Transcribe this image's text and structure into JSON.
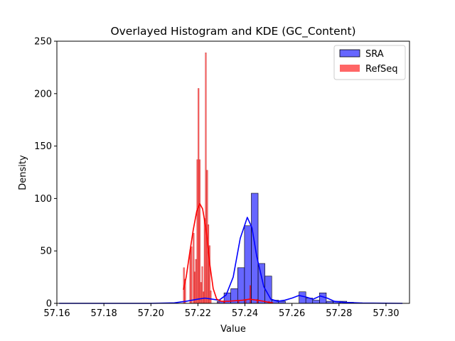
{
  "chart_data": {
    "type": "histogram",
    "title": "Overlayed Histogram and KDE (GC_Content)",
    "xlabel": "Value",
    "ylabel": "Density",
    "xlim": [
      57.16,
      57.31
    ],
    "ylim": [
      0,
      250
    ],
    "xticks": [
      "57.16",
      "57.18",
      "57.20",
      "57.22",
      "57.24",
      "57.26",
      "57.28",
      "57.30"
    ],
    "yticks": [
      "0",
      "50",
      "100",
      "150",
      "200",
      "250"
    ],
    "grid": false,
    "legend": {
      "position": "top-right",
      "entries": [
        "SRA",
        "RefSeq"
      ]
    },
    "series": [
      {
        "name": "SRA",
        "color": "#0000ff",
        "bin_width": 0.0029,
        "bins": [
          [
            57.2282,
            2
          ],
          [
            57.2311,
            10
          ],
          [
            57.234,
            14
          ],
          [
            57.2369,
            34
          ],
          [
            57.2398,
            74
          ],
          [
            57.2427,
            105
          ],
          [
            57.2456,
            38
          ],
          [
            57.2485,
            26
          ],
          [
            57.2514,
            3
          ],
          [
            57.2543,
            2
          ],
          [
            57.263,
            11
          ],
          [
            57.2659,
            5
          ],
          [
            57.2688,
            3
          ],
          [
            57.2717,
            10
          ],
          [
            57.2746,
            2
          ],
          [
            57.2775,
            2
          ],
          [
            57.2804,
            2
          ],
          [
            57.2833,
            1
          ]
        ],
        "kde": [
          [
            57.161,
            0
          ],
          [
            57.2,
            0
          ],
          [
            57.21,
            0.5
          ],
          [
            57.215,
            2
          ],
          [
            57.22,
            4
          ],
          [
            57.223,
            5
          ],
          [
            57.226,
            4
          ],
          [
            57.229,
            3
          ],
          [
            57.232,
            8
          ],
          [
            57.235,
            25
          ],
          [
            57.238,
            62
          ],
          [
            57.241,
            82
          ],
          [
            57.243,
            72
          ],
          [
            57.245,
            45
          ],
          [
            57.248,
            16
          ],
          [
            57.251,
            4
          ],
          [
            57.254,
            2
          ],
          [
            57.257,
            3
          ],
          [
            57.26,
            5
          ],
          [
            57.263,
            7.5
          ],
          [
            57.266,
            6
          ],
          [
            57.269,
            4
          ],
          [
            57.272,
            7
          ],
          [
            57.275,
            5
          ],
          [
            57.278,
            2
          ],
          [
            57.282,
            1
          ],
          [
            57.29,
            0.3
          ],
          [
            57.307,
            0
          ]
        ]
      },
      {
        "name": "RefSeq",
        "color": "#ff0000",
        "bin_width": 0.0005,
        "bins": [
          [
            57.2138,
            34
          ],
          [
            57.2143,
            23
          ],
          [
            57.2165,
            51
          ],
          [
            57.217,
            54
          ],
          [
            57.2179,
            67
          ],
          [
            57.2184,
            30
          ],
          [
            57.2189,
            42
          ],
          [
            57.2195,
            137
          ],
          [
            57.22,
            205
          ],
          [
            57.2205,
            137
          ],
          [
            57.221,
            20
          ],
          [
            57.2216,
            35
          ],
          [
            57.2221,
            11
          ],
          [
            57.2226,
            81
          ],
          [
            57.2231,
            239
          ],
          [
            57.2237,
            127
          ],
          [
            57.2242,
            75
          ],
          [
            57.2247,
            55
          ],
          [
            57.2252,
            12
          ],
          [
            57.2286,
            1
          ],
          [
            57.231,
            2
          ],
          [
            57.237,
            3
          ],
          [
            57.24,
            3
          ],
          [
            57.242,
            17
          ],
          [
            57.245,
            4
          ],
          [
            57.25,
            2
          ]
        ],
        "kde": [
          [
            57.2138,
            13
          ],
          [
            57.215,
            25
          ],
          [
            57.2165,
            48
          ],
          [
            57.218,
            70
          ],
          [
            57.2195,
            88
          ],
          [
            57.2208,
            95
          ],
          [
            57.222,
            90
          ],
          [
            57.2235,
            70
          ],
          [
            57.225,
            38
          ],
          [
            57.2265,
            14
          ],
          [
            57.228,
            4
          ],
          [
            57.23,
            2
          ],
          [
            57.233,
            2
          ],
          [
            57.236,
            2.5
          ],
          [
            57.239,
            3
          ],
          [
            57.242,
            4
          ],
          [
            57.245,
            3
          ],
          [
            57.248,
            2
          ],
          [
            57.25,
            1
          ],
          [
            57.252,
            0.5
          ]
        ]
      }
    ]
  }
}
